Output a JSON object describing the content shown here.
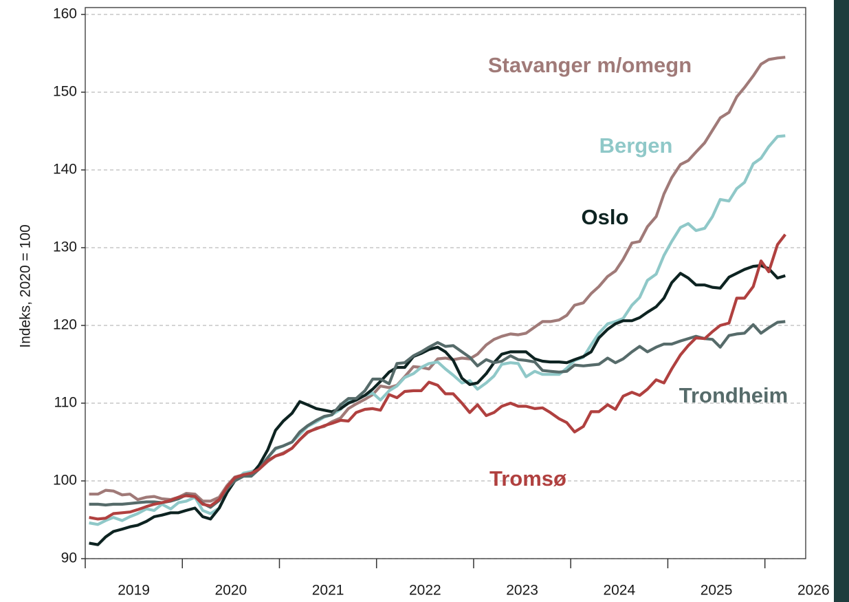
{
  "chart_data": {
    "type": "line",
    "ylabel": "Indeks, 2020 = 100",
    "xlim": [
      2019,
      2026.42
    ],
    "xticks": [
      2019,
      2020,
      2021,
      2022,
      2023,
      2024,
      2025,
      2026
    ],
    "ylim": [
      90,
      160
    ],
    "yticks": [
      90,
      100,
      110,
      120,
      130,
      140,
      150,
      160
    ],
    "grid": true,
    "x": [
      2019.04,
      2019.13,
      2019.21,
      2019.29,
      2019.38,
      2019.46,
      2019.54,
      2019.63,
      2019.71,
      2019.79,
      2019.88,
      2019.96,
      2020.04,
      2020.13,
      2020.21,
      2020.29,
      2020.38,
      2020.46,
      2020.54,
      2020.63,
      2020.71,
      2020.79,
      2020.88,
      2020.96,
      2021.04,
      2021.13,
      2021.21,
      2021.29,
      2021.38,
      2021.46,
      2021.54,
      2021.63,
      2021.71,
      2021.79,
      2021.88,
      2021.96,
      2022.04,
      2022.13,
      2022.21,
      2022.29,
      2022.38,
      2022.46,
      2022.54,
      2022.63,
      2022.71,
      2022.79,
      2022.88,
      2022.96,
      2023.04,
      2023.13,
      2023.21,
      2023.29,
      2023.38,
      2023.46,
      2023.54,
      2023.63,
      2023.71,
      2023.79,
      2023.88,
      2023.96,
      2024.04,
      2024.13,
      2024.21,
      2024.29,
      2024.38,
      2024.46,
      2024.54,
      2024.63,
      2024.71,
      2024.79,
      2024.88,
      2024.96,
      2025.04,
      2025.13,
      2025.21,
      2025.29,
      2025.38,
      2025.46,
      2025.54,
      2025.63,
      2025.71,
      2025.79,
      2025.88,
      2025.96,
      2026.04,
      2026.13,
      2026.21
    ],
    "series": [
      {
        "name": "Stavanger m/omegn",
        "color": "#a07a78",
        "values": [
          98.3,
          98.3,
          98.8,
          98.7,
          98.2,
          98.3,
          97.6,
          97.9,
          98,
          97.7,
          97.6,
          97.9,
          98.4,
          98.3,
          97.4,
          97.4,
          97.9,
          99.4,
          100.5,
          100.8,
          100.9,
          101.5,
          102.5,
          103.2,
          103.6,
          104.2,
          105.3,
          106.2,
          106.8,
          107.0,
          107.6,
          108.1,
          109.3,
          109.9,
          110.5,
          111.1,
          112.2,
          112.0,
          112.3,
          113.4,
          114.7,
          114.6,
          114.4,
          115.7,
          115.8,
          115.6,
          115.8,
          115.7,
          116.3,
          117.5,
          118.2,
          118.6,
          118.9,
          118.8,
          119.0,
          119.8,
          120.5,
          120.5,
          120.7,
          121.3,
          122.6,
          122.9,
          124.1,
          125.0,
          126.3,
          127.0,
          128.5,
          130.6,
          130.8,
          132.7,
          134,
          136.9,
          139,
          140.7,
          141.2,
          142.3,
          143.5,
          145.1,
          146.7,
          147.4,
          149.4,
          150.6,
          152.1,
          153.6,
          154.2,
          154.4,
          154.5
        ]
      },
      {
        "name": "Bergen",
        "color": "#8fc8c8",
        "values": [
          94.6,
          94.4,
          94.9,
          95.3,
          94.9,
          95.4,
          95.8,
          96.4,
          96.2,
          97,
          96.4,
          97.2,
          97.4,
          97.9,
          96.2,
          95.8,
          96.5,
          98.5,
          100,
          101,
          101.2,
          101.6,
          103,
          104.1,
          104.5,
          105,
          106,
          107,
          107.6,
          108.2,
          108.5,
          109.2,
          110.3,
          110.6,
          111,
          111.3,
          110.4,
          111.6,
          112.2,
          113.3,
          113.8,
          114.6,
          115.1,
          115.3,
          114.4,
          113.6,
          112.6,
          112.9,
          111.8,
          112.6,
          113.5,
          115,
          115.2,
          115.1,
          113.4,
          114.1,
          113.7,
          113.7,
          113.7,
          114.5,
          115.5,
          115.9,
          117.5,
          119,
          120.2,
          120.5,
          120.9,
          122.6,
          123.6,
          125.8,
          126.6,
          129,
          130.8,
          132.6,
          133.1,
          132.2,
          132.5,
          134,
          136.2,
          136,
          137.6,
          138.4,
          140.8,
          141.5,
          143,
          144.3,
          144.4
        ]
      },
      {
        "name": "Oslo",
        "color": "#0d2321",
        "values": [
          92,
          91.8,
          92.8,
          93.5,
          93.8,
          94.1,
          94.3,
          94.8,
          95.4,
          95.6,
          95.9,
          95.9,
          96.2,
          96.5,
          95.4,
          95.1,
          96.5,
          98.5,
          100,
          100.8,
          100.8,
          102,
          104,
          106.5,
          107.7,
          108.7,
          110.2,
          109.8,
          109.3,
          109.1,
          108.9,
          109.3,
          110,
          110.4,
          111,
          111.8,
          112.8,
          114,
          114.6,
          114.6,
          116,
          116.4,
          116.9,
          117.2,
          116.6,
          115.5,
          113.2,
          112.4,
          112.6,
          113.8,
          115.2,
          116.3,
          116.6,
          116.6,
          116.6,
          115.7,
          115.4,
          115.3,
          115.3,
          115.2,
          115.6,
          116.0,
          116.6,
          118.4,
          119.5,
          120.2,
          120.6,
          120.6,
          121,
          121.7,
          122.4,
          123.5,
          125.5,
          126.7,
          126.1,
          125.2,
          125.2,
          124.9,
          124.8,
          126.2,
          126.7,
          127.2,
          127.6,
          127.7,
          127.3,
          126.1,
          126.4
        ]
      },
      {
        "name": "Trondheim",
        "color": "#566b6a",
        "values": [
          97,
          97,
          96.9,
          97,
          97,
          97.1,
          97.2,
          97.3,
          97.3,
          97.2,
          97.4,
          97.7,
          98.2,
          98,
          97.1,
          96.6,
          97.5,
          99,
          100,
          100.6,
          100.6,
          101.5,
          103,
          104.2,
          104.5,
          105,
          106.3,
          107.1,
          107.8,
          108.3,
          108.5,
          109.8,
          110.6,
          110.6,
          111.6,
          113.1,
          113.1,
          112.5,
          115.1,
          115.2,
          116.1,
          116.6,
          117.2,
          117.8,
          117.3,
          117.4,
          116.6,
          115.9,
          114.8,
          115.6,
          115.2,
          115.4,
          116.1,
          115.6,
          115.5,
          115.3,
          114.2,
          114.1,
          114.0,
          114.1,
          114.9,
          114.8,
          114.9,
          115,
          115.8,
          115.2,
          115.7,
          116.6,
          117.3,
          116.6,
          117.2,
          117.6,
          117.6,
          118.0,
          118.3,
          118.6,
          118.3,
          118.2,
          117.2,
          118.7,
          118.9,
          119.0,
          120.1,
          119.0,
          119.7,
          120.4,
          120.5
        ]
      },
      {
        "name": "Tromsø",
        "color": "#b0403f",
        "values": [
          95.3,
          95.1,
          95.2,
          95.8,
          95.9,
          96,
          96.3,
          96.7,
          97,
          97.2,
          97.5,
          97.9,
          98.1,
          98.0,
          97.0,
          96.8,
          97.6,
          99.2,
          100.4,
          100.8,
          101.0,
          101.5,
          102.6,
          103.2,
          103.5,
          104.2,
          105.3,
          106.3,
          106.7,
          107.1,
          107.4,
          107.8,
          107.7,
          108.8,
          109.2,
          109.3,
          109.1,
          111.1,
          110.7,
          111.5,
          111.6,
          111.6,
          112.7,
          112.3,
          111.2,
          111.2,
          110,
          108.8,
          109.8,
          108.4,
          108.8,
          109.6,
          110.0,
          109.6,
          109.6,
          109.3,
          109.4,
          108.8,
          108.0,
          107.5,
          106.3,
          107.0,
          108.9,
          108.9,
          109.8,
          109.2,
          110.9,
          111.4,
          111,
          111.8,
          113,
          112.6,
          114.4,
          116.2,
          117.4,
          118.4,
          118.3,
          119.2,
          120.0,
          120.3,
          123.5,
          123.5,
          125,
          128.3,
          126.9,
          130.4,
          131.7
        ]
      }
    ]
  }
}
